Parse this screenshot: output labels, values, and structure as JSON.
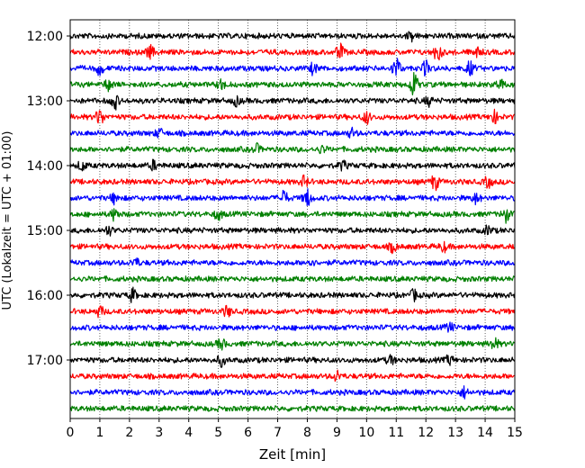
{
  "chart_data": {
    "type": "line",
    "title": "",
    "xlabel": "Zeit  [min]",
    "ylabel": "UTC (Lokalzeit = UTC + 01:00)",
    "xlim": [
      0,
      15
    ],
    "x_ticks": [
      "0",
      "1",
      "2",
      "3",
      "4",
      "5",
      "6",
      "7",
      "8",
      "9",
      "10",
      "11",
      "12",
      "13",
      "14",
      "15"
    ],
    "y_ticks": [
      "12:00",
      "13:00",
      "14:00",
      "15:00",
      "16:00",
      "17:00"
    ],
    "trace_start": "12:00",
    "trace_minutes": 15,
    "trace_count": 24,
    "grid": "vertical-dotted",
    "colors": [
      "#000000",
      "#ff0000",
      "#0000ff",
      "#008000"
    ],
    "bursts": [
      {
        "trace": 0,
        "x": 11.5,
        "amp": 0.5
      },
      {
        "trace": 1,
        "x": 2.7,
        "amp": 0.7
      },
      {
        "trace": 1,
        "x": 9.1,
        "amp": 0.9
      },
      {
        "trace": 1,
        "x": 12.4,
        "amp": 1.1
      },
      {
        "trace": 1,
        "x": 13.7,
        "amp": 0.6
      },
      {
        "trace": 2,
        "x": 1.0,
        "amp": 0.7
      },
      {
        "trace": 2,
        "x": 8.2,
        "amp": 0.6
      },
      {
        "trace": 2,
        "x": 11.0,
        "amp": 1.3
      },
      {
        "trace": 2,
        "x": 12.0,
        "amp": 0.8
      },
      {
        "trace": 2,
        "x": 13.5,
        "amp": 0.8
      },
      {
        "trace": 3,
        "x": 1.3,
        "amp": 0.7
      },
      {
        "trace": 3,
        "x": 5.1,
        "amp": 0.6
      },
      {
        "trace": 3,
        "x": 11.6,
        "amp": 1.5
      },
      {
        "trace": 3,
        "x": 14.5,
        "amp": 0.6
      },
      {
        "trace": 4,
        "x": 1.5,
        "amp": 0.9
      },
      {
        "trace": 4,
        "x": 5.6,
        "amp": 0.5
      },
      {
        "trace": 4,
        "x": 12.1,
        "amp": 0.5
      },
      {
        "trace": 5,
        "x": 1.0,
        "amp": 1.0
      },
      {
        "trace": 5,
        "x": 10.0,
        "amp": 0.7
      },
      {
        "trace": 5,
        "x": 14.3,
        "amp": 0.7
      },
      {
        "trace": 6,
        "x": 3.0,
        "amp": 0.5
      },
      {
        "trace": 6,
        "x": 9.5,
        "amp": 0.5
      },
      {
        "trace": 7,
        "x": 6.3,
        "amp": 0.5
      },
      {
        "trace": 7,
        "x": 8.5,
        "amp": 0.4
      },
      {
        "trace": 8,
        "x": 0.4,
        "amp": 0.6
      },
      {
        "trace": 8,
        "x": 2.8,
        "amp": 0.5
      },
      {
        "trace": 8,
        "x": 9.2,
        "amp": 0.5
      },
      {
        "trace": 9,
        "x": 7.9,
        "amp": 0.6
      },
      {
        "trace": 9,
        "x": 12.3,
        "amp": 0.9
      },
      {
        "trace": 9,
        "x": 14.1,
        "amp": 0.6
      },
      {
        "trace": 10,
        "x": 1.5,
        "amp": 0.6
      },
      {
        "trace": 10,
        "x": 7.2,
        "amp": 0.9
      },
      {
        "trace": 10,
        "x": 8.0,
        "amp": 1.0
      },
      {
        "trace": 10,
        "x": 13.7,
        "amp": 0.6
      },
      {
        "trace": 11,
        "x": 1.5,
        "amp": 0.7
      },
      {
        "trace": 11,
        "x": 5.0,
        "amp": 0.6
      },
      {
        "trace": 11,
        "x": 14.7,
        "amp": 0.8
      },
      {
        "trace": 12,
        "x": 1.3,
        "amp": 0.5
      },
      {
        "trace": 12,
        "x": 14.1,
        "amp": 0.5
      },
      {
        "trace": 13,
        "x": 10.9,
        "amp": 0.6
      },
      {
        "trace": 13,
        "x": 12.6,
        "amp": 0.5
      },
      {
        "trace": 14,
        "x": 2.2,
        "amp": 0.5
      },
      {
        "trace": 14,
        "x": 8.1,
        "amp": 0.4
      },
      {
        "trace": 16,
        "x": 2.1,
        "amp": 0.7
      },
      {
        "trace": 16,
        "x": 11.6,
        "amp": 0.6
      },
      {
        "trace": 17,
        "x": 1.0,
        "amp": 0.6
      },
      {
        "trace": 17,
        "x": 5.3,
        "amp": 0.6
      },
      {
        "trace": 18,
        "x": 12.8,
        "amp": 0.5
      },
      {
        "trace": 19,
        "x": 5.1,
        "amp": 0.6
      },
      {
        "trace": 19,
        "x": 14.3,
        "amp": 0.7
      },
      {
        "trace": 20,
        "x": 5.1,
        "amp": 0.6
      },
      {
        "trace": 20,
        "x": 10.8,
        "amp": 0.5
      },
      {
        "trace": 20,
        "x": 12.8,
        "amp": 0.5
      },
      {
        "trace": 21,
        "x": 9.0,
        "amp": 0.6
      },
      {
        "trace": 22,
        "x": 13.3,
        "amp": 0.6
      }
    ]
  }
}
